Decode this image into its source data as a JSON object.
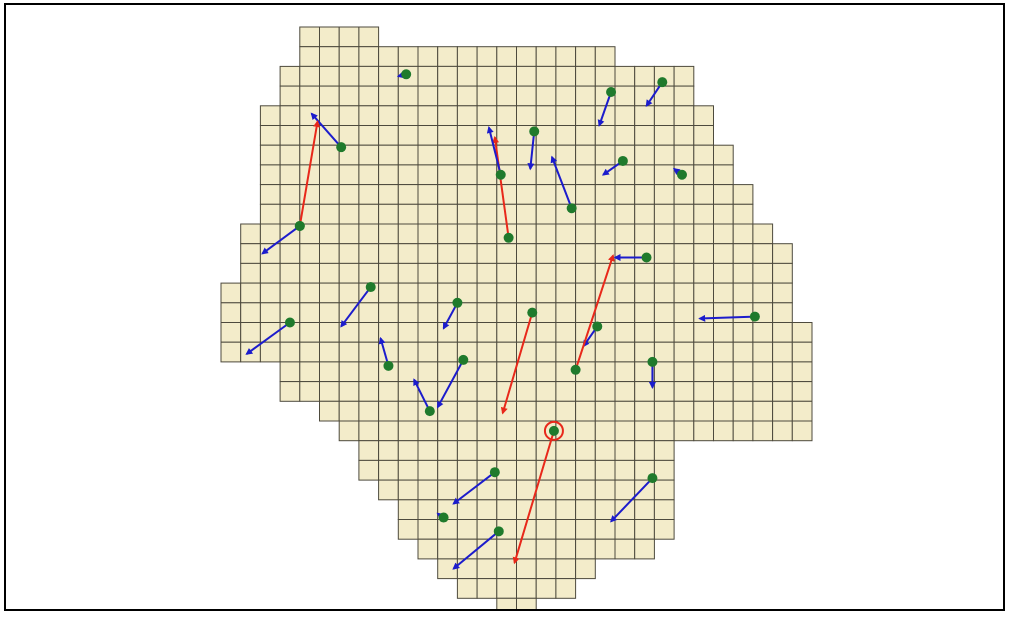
{
  "colors": {
    "cell_fill": "#f3ecca",
    "grid_line": "#4d4a3d",
    "station_dot": "#1f7a2c",
    "vector_normal": "#1c1ccc",
    "vector_highlight": "#e8281a",
    "selection_ring": "#e8281a",
    "frame_border": "#000000"
  },
  "grid": {
    "cell_size_units": 1,
    "origin_cell": [
      0,
      0
    ],
    "row_spans": [
      {
        "row": 0,
        "start": 4,
        "end": 7
      },
      {
        "row": 1,
        "start": 4,
        "end": 19
      },
      {
        "row": 2,
        "start": 3,
        "end": 23
      },
      {
        "row": 3,
        "start": 3,
        "end": 23
      },
      {
        "row": 4,
        "start": 2,
        "end": 24
      },
      {
        "row": 5,
        "start": 2,
        "end": 24
      },
      {
        "row": 6,
        "start": 2,
        "end": 25
      },
      {
        "row": 7,
        "start": 2,
        "end": 25
      },
      {
        "row": 8,
        "start": 2,
        "end": 26
      },
      {
        "row": 9,
        "start": 2,
        "end": 26
      },
      {
        "row": 10,
        "start": 1,
        "end": 27
      },
      {
        "row": 11,
        "start": 1,
        "end": 28
      },
      {
        "row": 12,
        "start": 1,
        "end": 28
      },
      {
        "row": 13,
        "start": 0,
        "end": 28
      },
      {
        "row": 14,
        "start": 0,
        "end": 28
      },
      {
        "row": 15,
        "start": 0,
        "end": 29
      },
      {
        "row": 16,
        "start": 0,
        "end": 29
      },
      {
        "row": 17,
        "start": 3,
        "end": 29
      },
      {
        "row": 18,
        "start": 3,
        "end": 29
      },
      {
        "row": 19,
        "start": 5,
        "end": 29
      },
      {
        "row": 20,
        "start": 6,
        "end": 29
      },
      {
        "row": 21,
        "start": 7,
        "end": 22
      },
      {
        "row": 22,
        "start": 7,
        "end": 22
      },
      {
        "row": 23,
        "start": 8,
        "end": 22
      },
      {
        "row": 24,
        "start": 9,
        "end": 22
      },
      {
        "row": 25,
        "start": 9,
        "end": 22
      },
      {
        "row": 26,
        "start": 10,
        "end": 21
      },
      {
        "row": 27,
        "start": 11,
        "end": 18
      },
      {
        "row": 28,
        "start": 12,
        "end": 17
      },
      {
        "row": 29,
        "start": 14,
        "end": 15
      }
    ]
  },
  "stations": [
    {
      "id": "s1",
      "x": 9.4,
      "y": 2.4,
      "dx": -0.4,
      "dy": 0.1,
      "highlight": false
    },
    {
      "id": "s2",
      "x": 6.1,
      "y": 6.1,
      "dx": -1.5,
      "dy": -1.7,
      "highlight": false
    },
    {
      "id": "s3",
      "x": 4.0,
      "y": 10.1,
      "dx": 0.9,
      "dy": -5.3,
      "highlight": true
    },
    {
      "id": "s4",
      "x": 4.0,
      "y": 10.1,
      "dx": -1.9,
      "dy": 1.4,
      "highlight": false
    },
    {
      "id": "s5",
      "x": 14.6,
      "y": 10.7,
      "dx": -0.7,
      "dy": -5.1,
      "highlight": true
    },
    {
      "id": "s6",
      "x": 15.9,
      "y": 5.3,
      "dx": -0.2,
      "dy": 1.9,
      "highlight": false
    },
    {
      "id": "s7",
      "x": 14.2,
      "y": 7.5,
      "dx": -0.6,
      "dy": -2.4,
      "highlight": false
    },
    {
      "id": "s8",
      "x": 17.8,
      "y": 9.2,
      "dx": -1.0,
      "dy": -2.6,
      "highlight": false
    },
    {
      "id": "s9",
      "x": 19.8,
      "y": 3.3,
      "dx": -0.6,
      "dy": 1.7,
      "highlight": false
    },
    {
      "id": "s10",
      "x": 20.4,
      "y": 6.8,
      "dx": -1.0,
      "dy": 0.7,
      "highlight": false
    },
    {
      "id": "s11",
      "x": 22.4,
      "y": 2.8,
      "dx": -0.8,
      "dy": 1.2,
      "highlight": false
    },
    {
      "id": "s12",
      "x": 23.4,
      "y": 7.5,
      "dx": -0.4,
      "dy": -0.3,
      "highlight": false
    },
    {
      "id": "s13",
      "x": 21.6,
      "y": 11.7,
      "dx": -1.6,
      "dy": 0.0,
      "highlight": false
    },
    {
      "id": "s14",
      "x": 7.6,
      "y": 13.2,
      "dx": -1.5,
      "dy": 2.0,
      "highlight": false
    },
    {
      "id": "s15",
      "x": 3.5,
      "y": 15.0,
      "dx": -2.2,
      "dy": 1.6,
      "highlight": false
    },
    {
      "id": "s16",
      "x": 12.0,
      "y": 14.0,
      "dx": -0.7,
      "dy": 1.3,
      "highlight": false
    },
    {
      "id": "s17",
      "x": 15.8,
      "y": 14.5,
      "dx": -1.5,
      "dy": 5.1,
      "highlight": true
    },
    {
      "id": "s18",
      "x": 19.1,
      "y": 15.2,
      "dx": -0.7,
      "dy": 1.0,
      "highlight": false
    },
    {
      "id": "s19",
      "x": 18.0,
      "y": 17.4,
      "dx": 1.9,
      "dy": -5.8,
      "highlight": true
    },
    {
      "id": "s20",
      "x": 27.1,
      "y": 14.7,
      "dx": -2.8,
      "dy": 0.1,
      "highlight": false
    },
    {
      "id": "s21",
      "x": 8.5,
      "y": 17.2,
      "dx": -0.4,
      "dy": -1.4,
      "highlight": false
    },
    {
      "id": "s22",
      "x": 12.3,
      "y": 16.9,
      "dx": -1.3,
      "dy": 2.4,
      "highlight": false
    },
    {
      "id": "s23",
      "x": 10.6,
      "y": 19.5,
      "dx": -0.8,
      "dy": -1.6,
      "highlight": false
    },
    {
      "id": "s24",
      "x": 21.9,
      "y": 17.0,
      "dx": 0.0,
      "dy": 1.3,
      "highlight": false
    },
    {
      "id": "s25",
      "x": 16.9,
      "y": 20.5,
      "dx": -2.0,
      "dy": 6.7,
      "highlight": true,
      "selected": true
    },
    {
      "id": "s26",
      "x": 13.9,
      "y": 22.6,
      "dx": -2.1,
      "dy": 1.6,
      "highlight": false
    },
    {
      "id": "s27",
      "x": 21.9,
      "y": 22.9,
      "dx": -2.1,
      "dy": 2.2,
      "highlight": false
    },
    {
      "id": "s28",
      "x": 11.3,
      "y": 24.9,
      "dx": -0.3,
      "dy": -0.2,
      "highlight": false
    },
    {
      "id": "s29",
      "x": 14.1,
      "y": 25.6,
      "dx": -2.3,
      "dy": 1.9,
      "highlight": false
    }
  ]
}
